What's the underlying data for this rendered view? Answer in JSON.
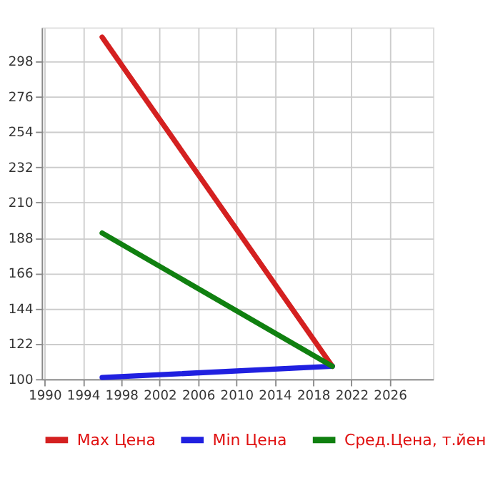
{
  "chart_data": {
    "type": "line",
    "x": [
      1996,
      2020
    ],
    "xlim": [
      1989.7,
      2030.5
    ],
    "xticks": [
      1990,
      1994,
      1998,
      2002,
      2006,
      2010,
      2014,
      2018,
      2022,
      2026
    ],
    "ylim": [
      100,
      319
    ],
    "yticks": [
      100,
      122,
      144,
      166,
      188,
      210,
      232,
      254,
      276,
      298
    ],
    "grid": true,
    "legend": "bottom",
    "line_style": "solid",
    "marker": "none",
    "series": [
      {
        "name": "Max Цена",
        "color": "#d42020",
        "values": [
          313,
          108
        ]
      },
      {
        "name": "Min Цена",
        "color": "#2020e0",
        "values": [
          101,
          108
        ]
      },
      {
        "name": "Сред.Цена, т.йен",
        "color": "#108010",
        "values": [
          191,
          108
        ]
      }
    ]
  }
}
